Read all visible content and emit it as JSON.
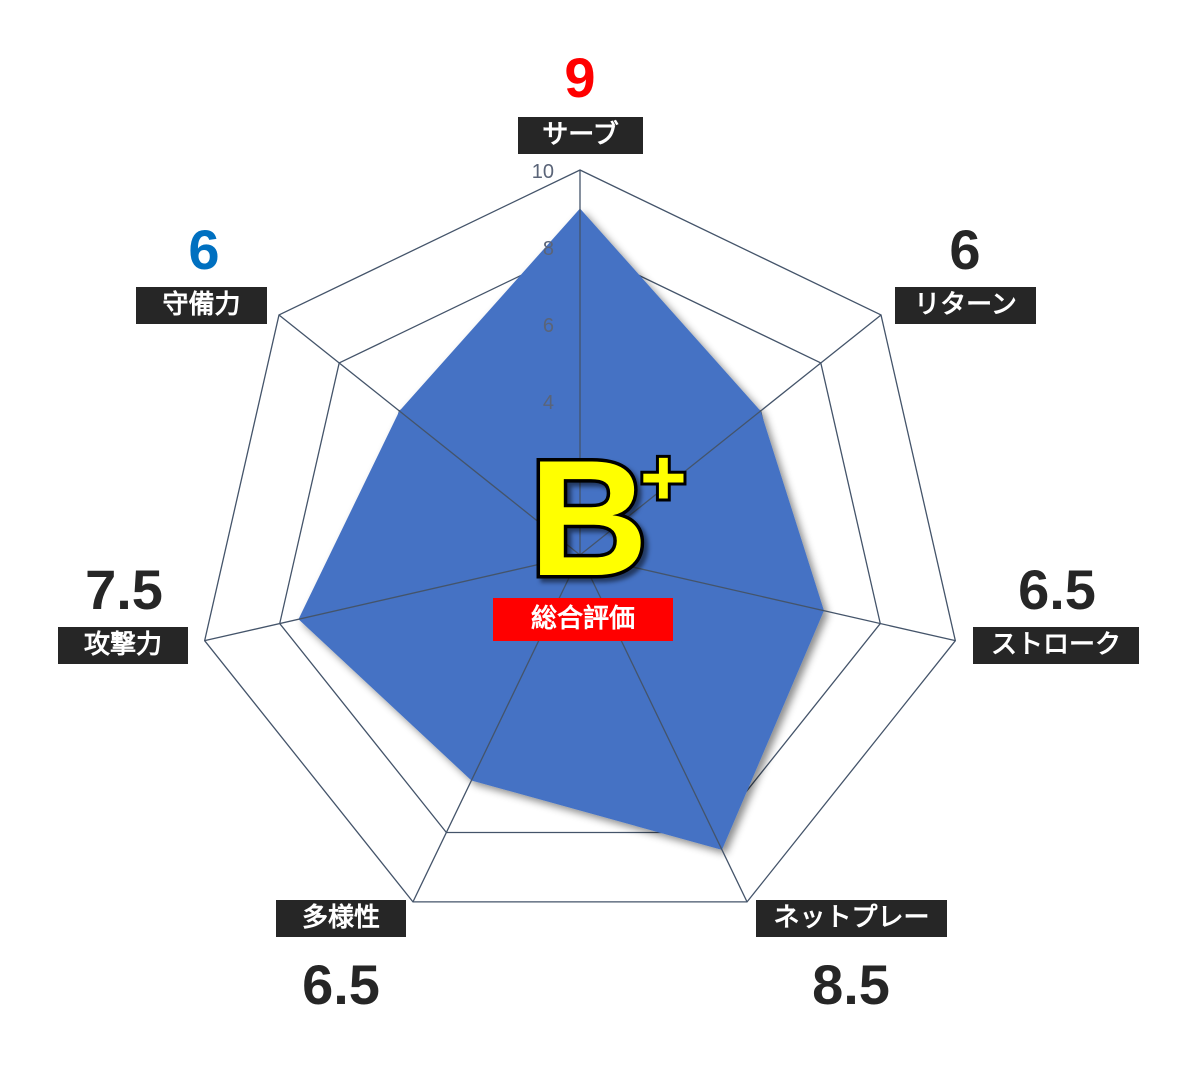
{
  "chart_data": {
    "type": "radar",
    "categories": [
      "サーブ",
      "リターン",
      "ストローク",
      "ネットプレー",
      "多様性",
      "攻撃力",
      "守備力"
    ],
    "values": [
      9,
      6,
      6.5,
      8.5,
      6.5,
      7.5,
      6
    ],
    "value_labels": [
      "9",
      "6",
      "6.5",
      "8.5",
      "6.5",
      "7.5",
      "6"
    ],
    "value_colors": [
      "#ff0000",
      "#262626",
      "#262626",
      "#262626",
      "#262626",
      "#262626",
      "#0070c0"
    ],
    "rlim": [
      0,
      10
    ],
    "tick_labels": [
      "4",
      "6",
      "8",
      "10"
    ],
    "ticks": [
      4,
      6,
      8,
      10
    ],
    "fill_color": "#4472c4",
    "grid_color": "#44546a",
    "legend": "none"
  },
  "overall": {
    "grade": "B",
    "grade_modifier": "+",
    "label": "総合評価",
    "grade_color": "#ffff00"
  }
}
